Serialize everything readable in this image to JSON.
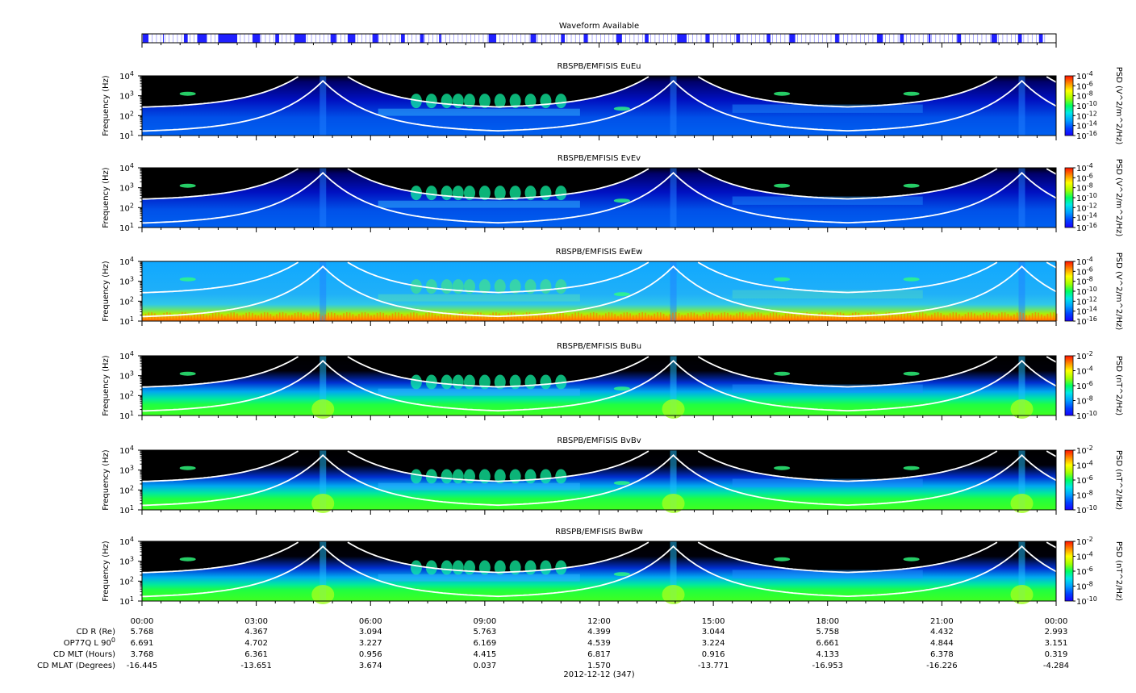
{
  "chart_data": {
    "type": "heatmap",
    "waveform": {
      "title": "Waveform Available",
      "color": "#2020ff",
      "segments": [
        [
          0.02,
          0.17
        ],
        [
          0.55,
          0.57
        ],
        [
          1.1,
          1.2
        ],
        [
          1.45,
          1.7
        ],
        [
          2.0,
          2.5
        ],
        [
          2.9,
          3.1
        ],
        [
          3.5,
          3.6
        ],
        [
          4.0,
          4.3
        ],
        [
          4.95,
          5.1
        ],
        [
          5.4,
          5.6
        ],
        [
          6.05,
          6.2
        ],
        [
          6.8,
          6.9
        ],
        [
          7.3,
          7.4
        ],
        [
          7.8,
          7.85
        ],
        [
          9.1,
          9.3
        ],
        [
          10.2,
          10.35
        ],
        [
          11.0,
          11.1
        ],
        [
          11.6,
          11.7
        ],
        [
          12.45,
          12.6
        ],
        [
          13.2,
          13.3
        ],
        [
          14.05,
          14.3
        ],
        [
          14.8,
          14.9
        ],
        [
          15.6,
          15.7
        ],
        [
          16.4,
          16.5
        ],
        [
          17.0,
          17.15
        ],
        [
          18.2,
          18.3
        ],
        [
          19.3,
          19.45
        ],
        [
          19.9,
          20.0
        ],
        [
          20.65,
          20.7
        ],
        [
          21.4,
          21.5
        ],
        [
          22.3,
          22.45
        ],
        [
          23.0,
          23.1
        ],
        [
          23.55,
          23.65
        ]
      ]
    },
    "panels": [
      {
        "title": "RBSPB/EMFISIS  EuEu",
        "ylabel": "Frequency (Hz)",
        "yticks": [
          "10",
          "10",
          "10",
          "10"
        ],
        "yexp": [
          "1",
          "2",
          "3",
          "4"
        ],
        "cblabel": "PSD (V^2/m^2/Hz)",
        "cbticks": [
          "10",
          "10",
          "10",
          "10",
          "10",
          "10",
          "10"
        ],
        "cbexp": [
          "-4",
          "-6",
          "-8",
          "-10",
          "-12",
          "-14",
          "-16"
        ],
        "clim": [
          -16,
          -4
        ],
        "kind": "electric"
      },
      {
        "title": "RBSPB/EMFISIS  EvEv",
        "ylabel": "Frequency (Hz)",
        "yticks": [
          "10",
          "10",
          "10",
          "10"
        ],
        "yexp": [
          "1",
          "2",
          "3",
          "4"
        ],
        "cblabel": "PSD (V^2/m^2/Hz)",
        "cbticks": [
          "10",
          "10",
          "10",
          "10",
          "10",
          "10",
          "10"
        ],
        "cbexp": [
          "-4",
          "-6",
          "-8",
          "-10",
          "-12",
          "-14",
          "-16"
        ],
        "clim": [
          -16,
          -4
        ],
        "kind": "electric"
      },
      {
        "title": "RBSPB/EMFISIS  EwEw",
        "ylabel": "Frequency (Hz)",
        "yticks": [
          "10",
          "10",
          "10",
          "10"
        ],
        "yexp": [
          "1",
          "2",
          "3",
          "4"
        ],
        "cblabel": "PSD (V^2/m^2/Hz)",
        "cbticks": [
          "10",
          "10",
          "10",
          "10",
          "10",
          "10",
          "10"
        ],
        "cbexp": [
          "-4",
          "-6",
          "-8",
          "-10",
          "-12",
          "-14",
          "-16"
        ],
        "clim": [
          -16,
          -4
        ],
        "kind": "ew"
      },
      {
        "title": "RBSPB/EMFISIS  BuBu",
        "ylabel": "Frequency (Hz)",
        "yticks": [
          "10",
          "10",
          "10",
          "10"
        ],
        "yexp": [
          "1",
          "2",
          "3",
          "4"
        ],
        "cblabel": "PSD (nT^2/Hz)",
        "cbticks": [
          "10",
          "10",
          "10",
          "10",
          "10"
        ],
        "cbexp": [
          "-2",
          "-4",
          "-6",
          "-8",
          "-10"
        ],
        "clim": [
          -10,
          -2
        ],
        "kind": "magnetic"
      },
      {
        "title": "RBSPB/EMFISIS  BvBv",
        "ylabel": "Frequency (Hz)",
        "yticks": [
          "10",
          "10",
          "10",
          "10"
        ],
        "yexp": [
          "1",
          "2",
          "3",
          "4"
        ],
        "cblabel": "PSD (nT^2/Hz)",
        "cbticks": [
          "10",
          "10",
          "10",
          "10",
          "10"
        ],
        "cbexp": [
          "-2",
          "-4",
          "-6",
          "-8",
          "-10"
        ],
        "clim": [
          -10,
          -2
        ],
        "kind": "magnetic"
      },
      {
        "title": "RBSPB/EMFISIS  BwBw",
        "ylabel": "Frequency (Hz)",
        "yticks": [
          "10",
          "10",
          "10",
          "10"
        ],
        "yexp": [
          "1",
          "2",
          "3",
          "4"
        ],
        "cblabel": "PSD (nT^2/Hz)",
        "cbticks": [
          "10",
          "10",
          "10",
          "10",
          "10"
        ],
        "cbexp": [
          "-2",
          "-4",
          "-6",
          "-8",
          "-10"
        ],
        "clim": [
          -10,
          -2
        ],
        "kind": "magnetic"
      }
    ],
    "xlim_hours": [
      0,
      24
    ],
    "ylim_log10_hz": [
      1,
      4
    ],
    "xticks": [
      "00:00",
      "03:00",
      "06:00",
      "09:00",
      "12:00",
      "15:00",
      "18:00",
      "21:00",
      "00:00"
    ],
    "perigee_hours": [
      4.75,
      13.95,
      23.1
    ],
    "ephemeris": {
      "rows": [
        {
          "label": "CD R (Re)",
          "values": [
            "5.768",
            "4.367",
            "3.094",
            "5.763",
            "4.399",
            "3.044",
            "5.758",
            "4.432",
            "2.993"
          ]
        },
        {
          "label": "OP77Q L 90",
          "sup": "0",
          "values": [
            "6.691",
            "4.702",
            "3.227",
            "6.169",
            "4.539",
            "3.224",
            "6.661",
            "4.844",
            "3.151"
          ]
        },
        {
          "label": "CD MLT (Hours)",
          "values": [
            "3.768",
            "6.361",
            "0.956",
            "4.415",
            "6.817",
            "0.916",
            "4.133",
            "6.378",
            "0.319"
          ]
        },
        {
          "label": "CD MLAT (Degrees)",
          "values": [
            "-16.445",
            "-13.651",
            "3.674",
            "0.037",
            "1.570",
            "-13.771",
            "-16.953",
            "-16.226",
            "-4.284"
          ]
        }
      ]
    },
    "date_label": "2012-12-12 (347)",
    "line_color": "#ffffff"
  }
}
